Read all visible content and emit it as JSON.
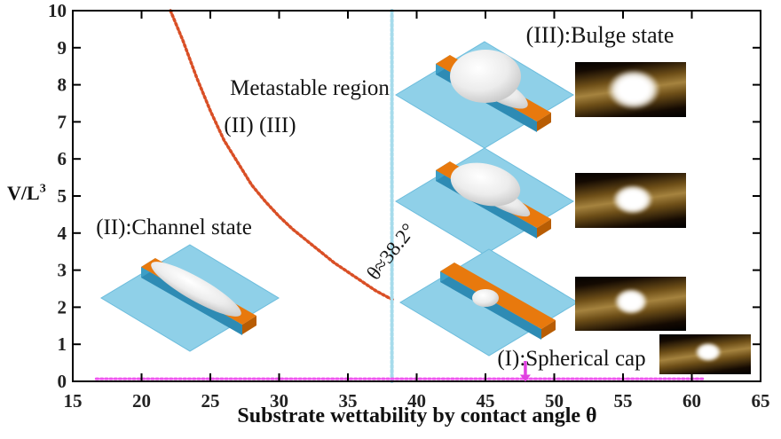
{
  "figure": {
    "y_axis_label_base": "V/L",
    "y_axis_label_exponent": "3",
    "x_axis_label": "Substrate wettability by contact angle θ"
  },
  "annotations": {
    "metastable": "Metastable region",
    "metastable_states": "(II) (III)",
    "bulge": "(III):Bulge state",
    "channel": "(II):Channel state",
    "spherical_cap": "(I):Spherical cap",
    "critical_angle": "θ≈38.2°"
  },
  "colors": {
    "boundary_curve": "#d94f26",
    "critical_line": "#a6dbeb",
    "spherical_cap_line": "#ee55ee",
    "arrow": "#e040e0",
    "axis": "#000000",
    "plate_blue": "#8fd0e8",
    "channel_orange": "#e8790d"
  },
  "chart_data": {
    "type": "line",
    "xlabel": "Substrate wettability by contact angle θ",
    "ylabel": "V/L^3",
    "xlim": [
      15,
      65
    ],
    "ylim": [
      0,
      10
    ],
    "x_ticks": [
      15,
      20,
      25,
      30,
      35,
      40,
      45,
      50,
      55,
      60,
      65
    ],
    "y_ticks": [
      0,
      1,
      2,
      3,
      4,
      5,
      6,
      7,
      8,
      9,
      10
    ],
    "grid": false,
    "series": [
      {
        "name": "metastable boundary between (II) and (III)",
        "style": "dotted",
        "color": "#d94f26",
        "width": 3.5,
        "x": [
          22.1,
          23,
          24,
          25,
          26,
          27,
          28,
          29,
          30,
          31,
          32,
          33,
          34,
          35,
          36,
          37,
          38,
          38.3
        ],
        "y": [
          10,
          9.2,
          8.2,
          7.3,
          6.5,
          5.9,
          5.3,
          4.85,
          4.45,
          4.1,
          3.8,
          3.5,
          3.2,
          2.95,
          2.7,
          2.45,
          2.25,
          2.2
        ]
      },
      {
        "name": "critical wettability θ≈38.2°",
        "style": "dotted",
        "color": "#a6dbeb",
        "width": 4,
        "x": [
          38.2,
          38.2
        ],
        "y": [
          0,
          10
        ]
      },
      {
        "name": "(I) spherical cap branch",
        "style": "dotted",
        "color": "#ee55ee",
        "width": 3,
        "x": [
          16.7,
          60.9
        ],
        "y": [
          0.07,
          0.07
        ]
      }
    ],
    "arrow": {
      "x": 47.9,
      "y_from": 0.55,
      "y_to": 0.18,
      "color": "#e040e0"
    }
  }
}
